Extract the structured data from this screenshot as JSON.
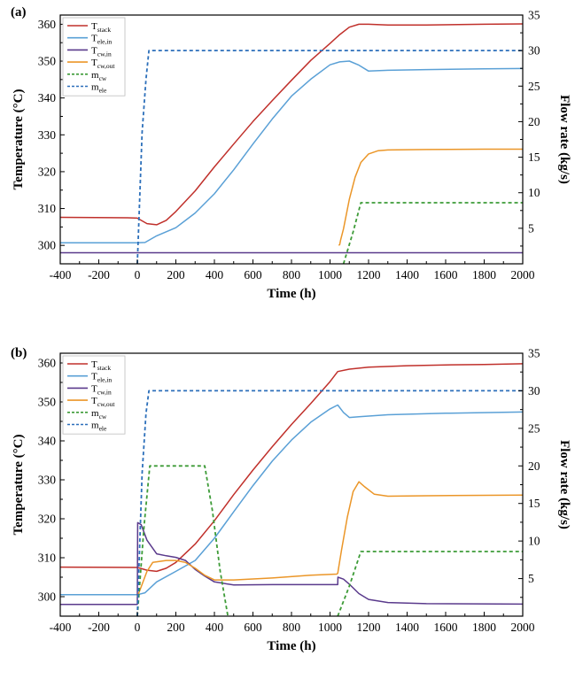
{
  "chart_data": [
    {
      "panel_label": "(a)",
      "type": "line",
      "xlabel": "Time (h)",
      "ylabel": "Temperature (°C)",
      "y2label": "Flow rate (kg/s)",
      "xlim": [
        -400,
        2000
      ],
      "ylim": [
        295,
        362.5
      ],
      "y2lim": [
        0,
        35
      ],
      "x_ticks": [
        -400,
        -200,
        0,
        200,
        400,
        600,
        800,
        1000,
        1200,
        1400,
        1600,
        1800,
        2000
      ],
      "y_ticks": [
        300,
        310,
        320,
        330,
        340,
        350,
        360
      ],
      "y2_ticks": [
        5,
        10,
        15,
        20,
        25,
        30,
        35
      ],
      "legend_position": "top-left",
      "series": [
        {
          "name": "T",
          "sub": "stack",
          "axis": "left",
          "color": "#c0302b",
          "dash": "solid",
          "points": [
            [
              -400,
              307.6
            ],
            [
              -50,
              307.5
            ],
            [
              0,
              307.4
            ],
            [
              50,
              305.9
            ],
            [
              100,
              305.6
            ],
            [
              150,
              306.8
            ],
            [
              200,
              309.2
            ],
            [
              300,
              314.8
            ],
            [
              400,
              321.3
            ],
            [
              500,
              327.5
            ],
            [
              600,
              333.6
            ],
            [
              700,
              339.3
            ],
            [
              800,
              344.8
            ],
            [
              900,
              350.2
            ],
            [
              1000,
              354.8
            ],
            [
              1050,
              357.2
            ],
            [
              1100,
              359.2
            ],
            [
              1150,
              360.0
            ],
            [
              1200,
              360.0
            ],
            [
              1300,
              359.8
            ],
            [
              1500,
              359.8
            ],
            [
              1800,
              360.0
            ],
            [
              2000,
              360.1
            ]
          ]
        },
        {
          "name": "T",
          "sub": "ele,in",
          "axis": "left",
          "color": "#5aa0d6",
          "dash": "solid",
          "points": [
            [
              -400,
              300.7
            ],
            [
              0,
              300.7
            ],
            [
              40,
              300.8
            ],
            [
              100,
              302.6
            ],
            [
              200,
              304.8
            ],
            [
              300,
              308.8
            ],
            [
              400,
              314.0
            ],
            [
              500,
              320.5
            ],
            [
              600,
              327.5
            ],
            [
              700,
              334.3
            ],
            [
              800,
              340.5
            ],
            [
              900,
              345.1
            ],
            [
              1000,
              349.0
            ],
            [
              1050,
              349.8
            ],
            [
              1100,
              350.0
            ],
            [
              1150,
              348.9
            ],
            [
              1200,
              347.3
            ],
            [
              1300,
              347.5
            ],
            [
              1500,
              347.7
            ],
            [
              1800,
              347.9
            ],
            [
              2000,
              348.0
            ]
          ]
        },
        {
          "name": "T",
          "sub": "cw,in",
          "axis": "left",
          "color": "#5a3a8c",
          "dash": "solid",
          "points": [
            [
              -400,
              298.0
            ],
            [
              2000,
              298.0
            ]
          ]
        },
        {
          "name": "T",
          "sub": "cw,out",
          "axis": "left",
          "color": "#eb9628",
          "dash": "solid",
          "points": [
            [
              1045,
              300.0
            ],
            [
              1050,
              300.2
            ],
            [
              1055,
              301.5
            ],
            [
              1070,
              304.5
            ],
            [
              1100,
              312.5
            ],
            [
              1130,
              318.5
            ],
            [
              1160,
              322.5
            ],
            [
              1200,
              324.8
            ],
            [
              1250,
              325.7
            ],
            [
              1300,
              325.9
            ],
            [
              1500,
              326.0
            ],
            [
              1800,
              326.1
            ],
            [
              2000,
              326.1
            ]
          ]
        },
        {
          "name": "m",
          "sub": "cw",
          "axis": "right",
          "color": "#3d9b37",
          "dash": "dashed",
          "points": [
            [
              1070,
              0.0
            ],
            [
              1120,
              4.5
            ],
            [
              1160,
              8.6
            ],
            [
              1600,
              8.6
            ],
            [
              2000,
              8.6
            ]
          ]
        },
        {
          "name": "m",
          "sub": "ele",
          "axis": "right",
          "color": "#2c6fba",
          "dash": "dashed",
          "points": [
            [
              0,
              0.0
            ],
            [
              25,
              18.5
            ],
            [
              45,
              26.0
            ],
            [
              60,
              30.0
            ],
            [
              1000,
              30.0
            ],
            [
              2000,
              30.0
            ]
          ]
        }
      ]
    },
    {
      "panel_label": "(b)",
      "type": "line",
      "xlabel": "Time (h)",
      "ylabel": "Temperature (°C)",
      "y2label": "Flow rate (kg/s)",
      "xlim": [
        -400,
        2000
      ],
      "ylim": [
        295,
        362.5
      ],
      "y2lim": [
        0,
        35
      ],
      "x_ticks": [
        -400,
        -200,
        0,
        200,
        400,
        600,
        800,
        1000,
        1200,
        1400,
        1600,
        1800,
        2000
      ],
      "y_ticks": [
        300,
        310,
        320,
        330,
        340,
        350,
        360
      ],
      "y2_ticks": [
        5,
        10,
        15,
        20,
        25,
        30,
        35
      ],
      "legend_position": "top-left",
      "series": [
        {
          "name": "T",
          "sub": "stack",
          "axis": "left",
          "color": "#c0302b",
          "dash": "solid",
          "points": [
            [
              -400,
              307.6
            ],
            [
              0,
              307.5
            ],
            [
              50,
              306.8
            ],
            [
              100,
              306.5
            ],
            [
              150,
              307.3
            ],
            [
              200,
              308.8
            ],
            [
              300,
              313.5
            ],
            [
              400,
              319.5
            ],
            [
              500,
              326.2
            ],
            [
              600,
              332.5
            ],
            [
              700,
              338.5
            ],
            [
              800,
              344.2
            ],
            [
              900,
              349.6
            ],
            [
              1000,
              355.2
            ],
            [
              1040,
              357.8
            ],
            [
              1100,
              358.4
            ],
            [
              1200,
              358.9
            ],
            [
              1400,
              359.3
            ],
            [
              1600,
              359.5
            ],
            [
              1800,
              359.6
            ],
            [
              2000,
              359.8
            ]
          ]
        },
        {
          "name": "T",
          "sub": "ele,in",
          "axis": "left",
          "color": "#5aa0d6",
          "dash": "solid",
          "points": [
            [
              -400,
              300.5
            ],
            [
              0,
              300.5
            ],
            [
              40,
              301.0
            ],
            [
              100,
              303.8
            ],
            [
              200,
              306.5
            ],
            [
              300,
              309.3
            ],
            [
              400,
              315.0
            ],
            [
              500,
              321.8
            ],
            [
              600,
              328.5
            ],
            [
              700,
              334.8
            ],
            [
              800,
              340.2
            ],
            [
              900,
              344.8
            ],
            [
              1000,
              348.2
            ],
            [
              1040,
              349.2
            ],
            [
              1070,
              347.3
            ],
            [
              1100,
              346.0
            ],
            [
              1150,
              346.2
            ],
            [
              1300,
              346.7
            ],
            [
              1600,
              347.1
            ],
            [
              2000,
              347.4
            ]
          ]
        },
        {
          "name": "T",
          "sub": "cw,in",
          "axis": "left",
          "color": "#5a3a8c",
          "dash": "solid",
          "points": [
            [
              -400,
              298.0
            ],
            [
              0,
              298.0
            ],
            [
              2,
              319.0
            ],
            [
              20,
              318.5
            ],
            [
              50,
              314.5
            ],
            [
              100,
              311.0
            ],
            [
              150,
              310.5
            ],
            [
              200,
              310.1
            ],
            [
              250,
              309.3
            ],
            [
              300,
              307.0
            ],
            [
              350,
              305.3
            ],
            [
              400,
              303.8
            ],
            [
              500,
              303.0
            ],
            [
              700,
              303.1
            ],
            [
              1040,
              303.1
            ],
            [
              1041,
              305.0
            ],
            [
              1070,
              304.5
            ],
            [
              1100,
              303.2
            ],
            [
              1150,
              300.8
            ],
            [
              1200,
              299.3
            ],
            [
              1300,
              298.5
            ],
            [
              1500,
              298.2
            ],
            [
              2000,
              298.1
            ]
          ]
        },
        {
          "name": "T",
          "sub": "cw,out",
          "axis": "left",
          "color": "#eb9628",
          "dash": "solid",
          "points": [
            [
              0,
              300.0
            ],
            [
              20,
              302.5
            ],
            [
              50,
              306.5
            ],
            [
              80,
              308.8
            ],
            [
              150,
              309.3
            ],
            [
              200,
              309.3
            ],
            [
              250,
              308.8
            ],
            [
              300,
              307.3
            ],
            [
              350,
              305.5
            ],
            [
              400,
              304.3
            ],
            [
              500,
              304.3
            ],
            [
              700,
              304.8
            ],
            [
              900,
              305.5
            ],
            [
              1035,
              305.8
            ],
            [
              1040,
              306.0
            ],
            [
              1060,
              312.0
            ],
            [
              1090,
              320.5
            ],
            [
              1120,
              327.0
            ],
            [
              1150,
              329.5
            ],
            [
              1180,
              328.2
            ],
            [
              1230,
              326.3
            ],
            [
              1300,
              325.8
            ],
            [
              1500,
              325.9
            ],
            [
              2000,
              326.1
            ]
          ]
        },
        {
          "name": "m",
          "sub": "cw",
          "axis": "right",
          "color": "#3d9b37",
          "dash": "dashed",
          "points": [
            [
              0,
              0.0
            ],
            [
              35,
              12.0
            ],
            [
              65,
              20.0
            ],
            [
              350,
              20.0
            ],
            [
              390,
              14.0
            ],
            [
              430,
              6.0
            ],
            [
              470,
              0.0
            ]
          ]
        },
        {
          "name": "m",
          "sub": "cw",
          "axis": "right",
          "color": "#3d9b37",
          "dash": "dashed",
          "legend": false,
          "points": [
            [
              1040,
              0.0
            ],
            [
              1100,
              4.0
            ],
            [
              1160,
              8.6
            ],
            [
              1600,
              8.6
            ],
            [
              2000,
              8.6
            ]
          ]
        },
        {
          "name": "m",
          "sub": "ele",
          "axis": "right",
          "color": "#2c6fba",
          "dash": "dashed",
          "points": [
            [
              0,
              0.0
            ],
            [
              25,
              19.0
            ],
            [
              45,
              27.0
            ],
            [
              60,
              30.0
            ],
            [
              1000,
              30.0
            ],
            [
              2000,
              30.0
            ]
          ]
        }
      ]
    }
  ]
}
